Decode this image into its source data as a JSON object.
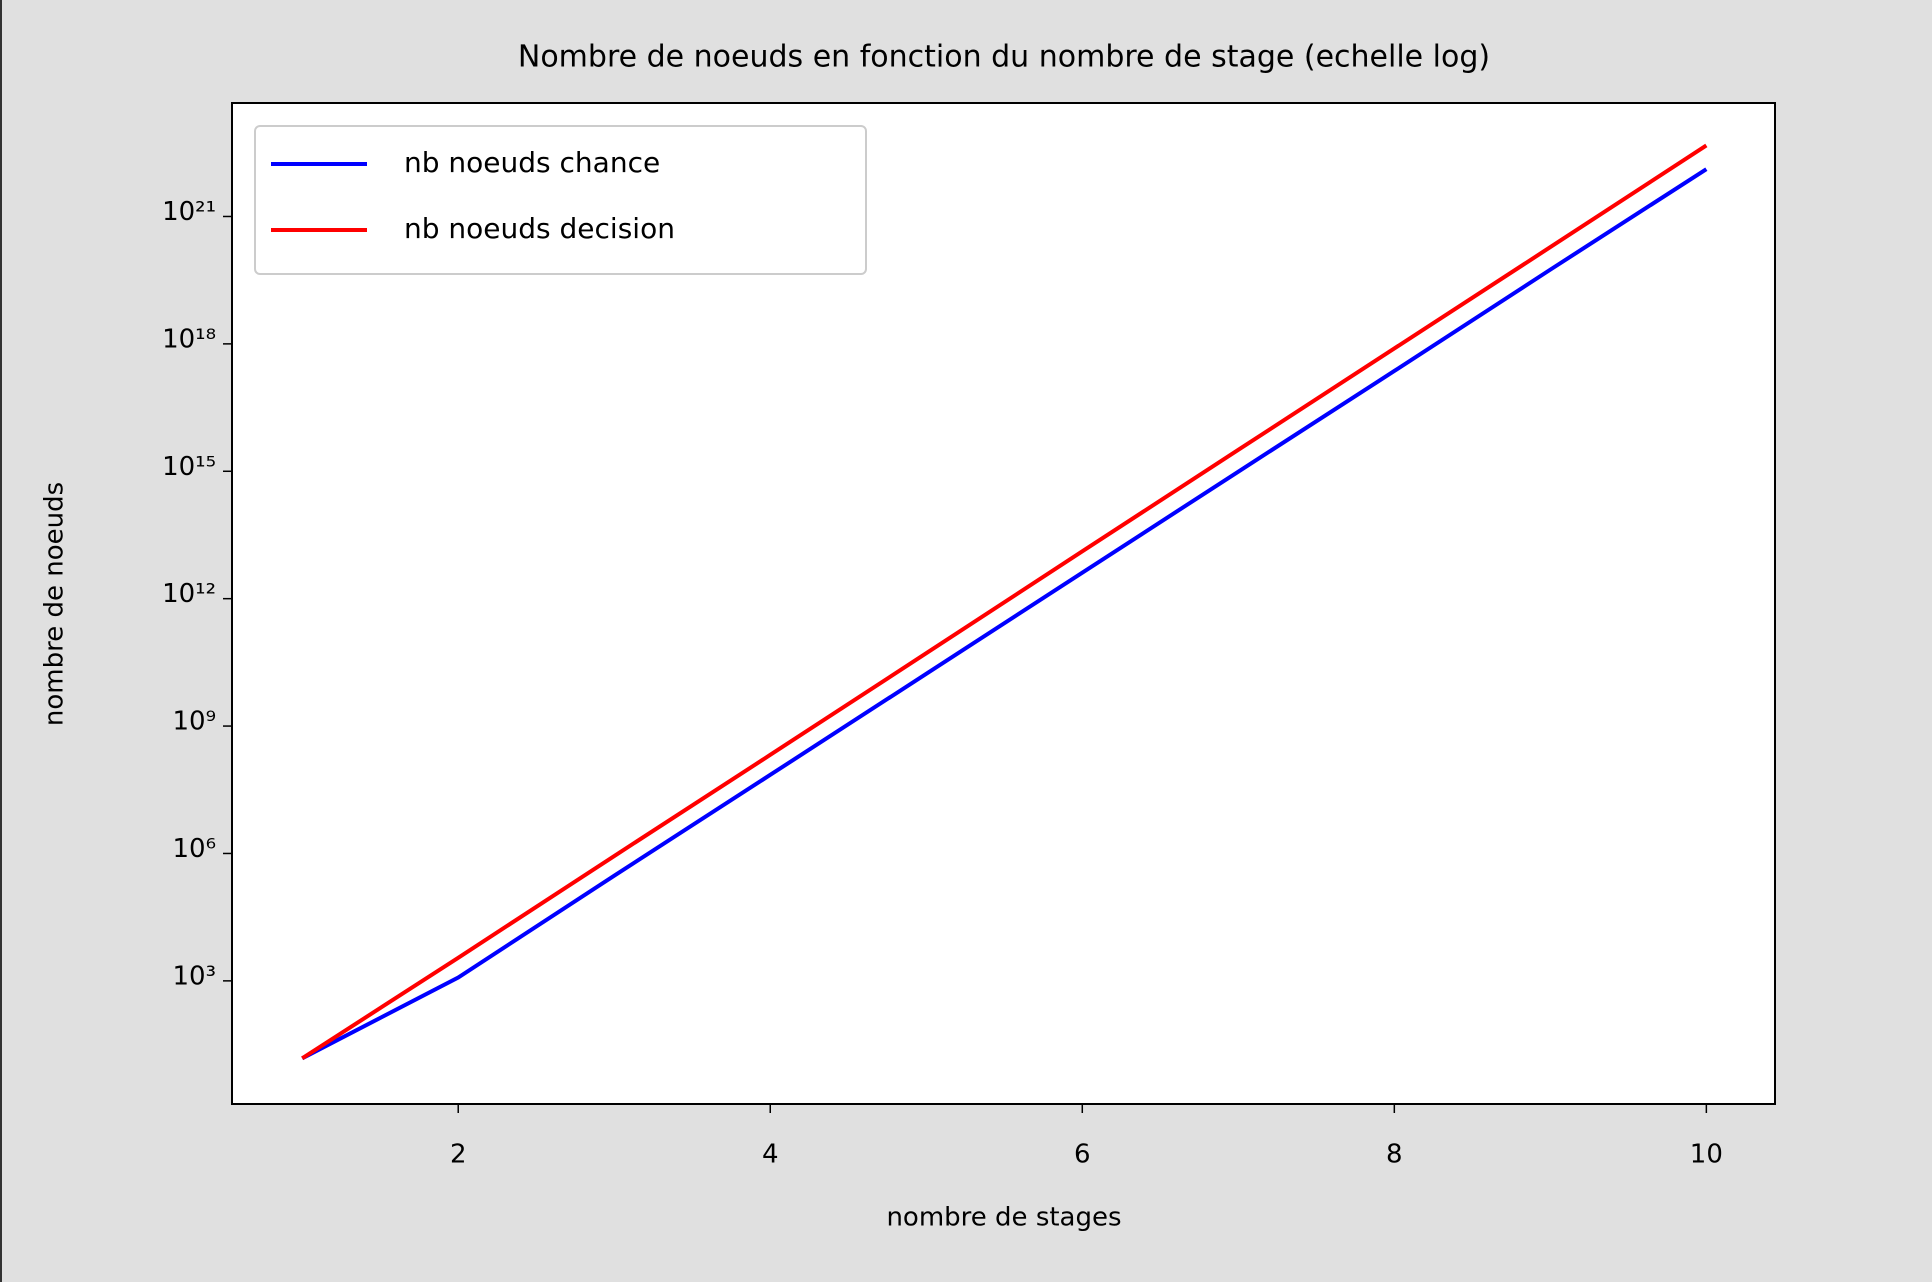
{
  "chart_data": {
    "type": "line",
    "title": "Nombre de noeuds en fonction du nombre de stage (echelle log)",
    "xlabel": "nombre de stages",
    "ylabel": "nombre de noeuds",
    "x": [
      1,
      2,
      3,
      4,
      5,
      6,
      7,
      8,
      9,
      10
    ],
    "series": [
      {
        "name": "nb noeuds chance",
        "color": "#0000ff",
        "values": [
          15,
          1200,
          300000,
          71000000,
          17000000000,
          4100000000000,
          980000000000000,
          2.3e+17,
          5.6e+19,
          1.3e+22
        ]
      },
      {
        "name": "nb noeuds decision",
        "color": "#ff0000",
        "values": [
          15,
          3500,
          870000,
          210000000,
          52000000000,
          13000000000000,
          3200000000000000,
          7.8e+17,
          1.9e+20,
          4.7e+22
        ]
      }
    ],
    "xlim": [
      0.55,
      10.44
    ],
    "xticks": [
      2,
      4,
      6,
      8,
      10
    ],
    "yscale": "log",
    "ylim": [
      1.26,
      4.7e+23
    ],
    "yticks": [
      {
        "value": 1000,
        "label": "10³"
      },
      {
        "value": 1000000,
        "label": "10⁶"
      },
      {
        "value": 1000000000,
        "label": "10⁹"
      },
      {
        "value": 1000000000000.0,
        "label": "10¹²"
      },
      {
        "value": 1000000000000000.0,
        "label": "10¹⁵"
      },
      {
        "value": 1e+18,
        "label": "10¹⁸"
      },
      {
        "value": 1e+21,
        "label": "10²¹"
      }
    ],
    "legend": "upper left"
  }
}
